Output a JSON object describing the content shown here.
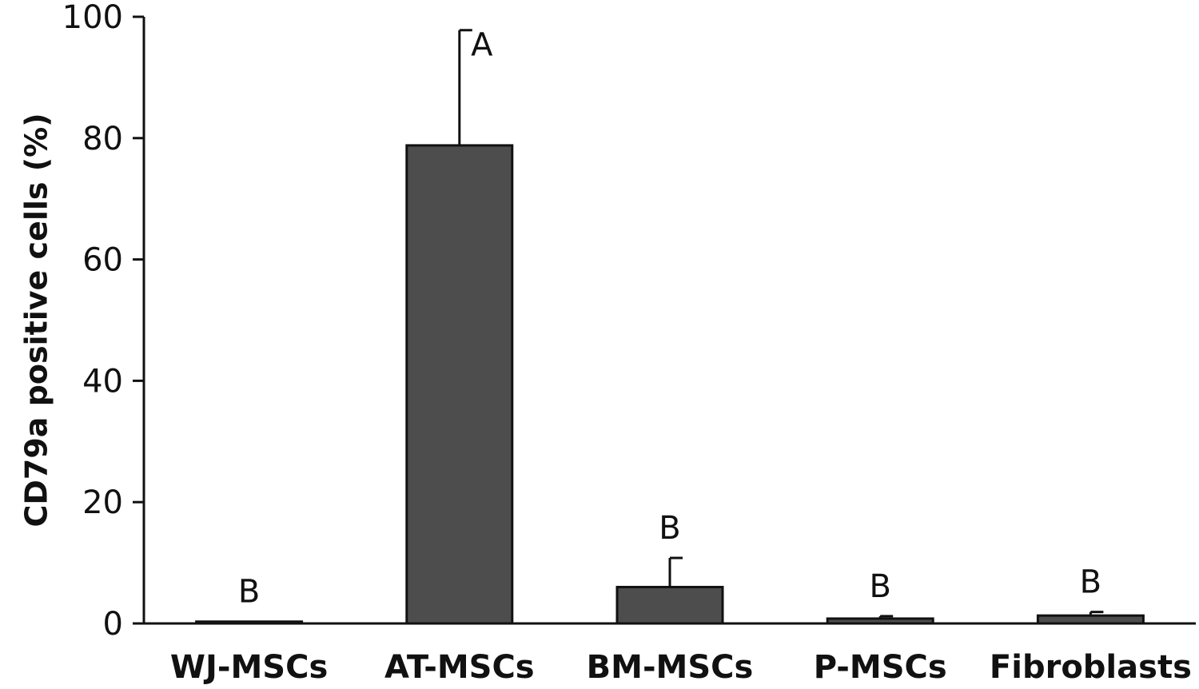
{
  "chart_data": {
    "type": "bar",
    "categories": [
      "WJ-MSCs",
      "AT-MSCs",
      "BM-MSCs",
      "P-MSCs",
      "Fibroblasts"
    ],
    "values": [
      0.3,
      78.8,
      6.0,
      0.8,
      1.3
    ],
    "errors": [
      0,
      19.0,
      4.8,
      0.4,
      0.6
    ],
    "significance": [
      "B",
      "A",
      "B",
      "B",
      "B"
    ],
    "ylabel": "CD79a positive cells (%)",
    "ylim": [
      0,
      100
    ],
    "yticks": [
      0,
      20,
      40,
      60,
      80,
      100
    ],
    "bar_color": "#4d4d4d",
    "grid": false
  }
}
